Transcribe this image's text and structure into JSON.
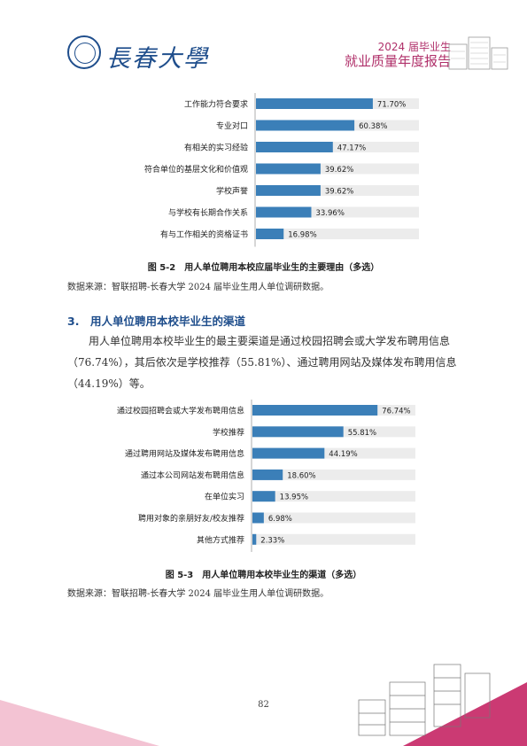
{
  "header": {
    "logo_text": "長春大學",
    "report_year": "2024 届毕业生",
    "report_title": "就业质量年度报告"
  },
  "figure_5_2": {
    "caption": "图 5-2　用人单位聘用本校应届毕业生的主要理由（多选）",
    "source": "数据来源：智联招聘-长春大学 2024 届毕业生用人单位调研数据。"
  },
  "section": {
    "heading": "3.　用人单位聘用本校毕业生的渠道",
    "paragraph": "用人单位聘用本校毕业生的最主要渠道是通过校园招聘会或大学发布聘用信息（76.74%），其后依次是学校推荐（55.81%）、通过聘用网站及媒体发布聘用信息（44.19%）等。"
  },
  "figure_5_3": {
    "caption": "图 5-3　用人单位聘用本校毕业生的渠道（多选）",
    "source": "数据来源：智联招聘-长春大学 2024 届毕业生用人单位调研数据。"
  },
  "page_number": "82",
  "colors": {
    "bar": "#3b7fb8",
    "track": "#ececec",
    "accent": "#1f4e8c",
    "pink": "#b0306a"
  },
  "chart_data": [
    {
      "type": "bar",
      "orientation": "horizontal",
      "categories": [
        "工作能力符合要求",
        "专业对口",
        "有相关的实习经验",
        "符合单位的基层文化和价值观",
        "学校声誉",
        "与学校有长期合作关系",
        "有与工作相关的资格证书"
      ],
      "values": [
        71.7,
        60.38,
        47.17,
        39.62,
        39.62,
        33.96,
        16.98
      ],
      "value_labels": [
        "71.70%",
        "60.38%",
        "47.17%",
        "39.62%",
        "39.62%",
        "33.96%",
        "16.98%"
      ],
      "xlim": [
        0,
        100
      ]
    },
    {
      "type": "bar",
      "orientation": "horizontal",
      "categories": [
        "通过校园招聘会或大学发布聘用信息",
        "学校推荐",
        "通过聘用网站及媒体发布聘用信息",
        "通过本公司网站发布聘用信息",
        "在单位实习",
        "聘用对象的亲朋好友/校友推荐",
        "其他方式推荐"
      ],
      "values": [
        76.74,
        55.81,
        44.19,
        18.6,
        13.95,
        6.98,
        2.33
      ],
      "value_labels": [
        "76.74%",
        "55.81%",
        "44.19%",
        "18.60%",
        "13.95%",
        "6.98%",
        "2.33%"
      ],
      "xlim": [
        0,
        100
      ]
    }
  ]
}
